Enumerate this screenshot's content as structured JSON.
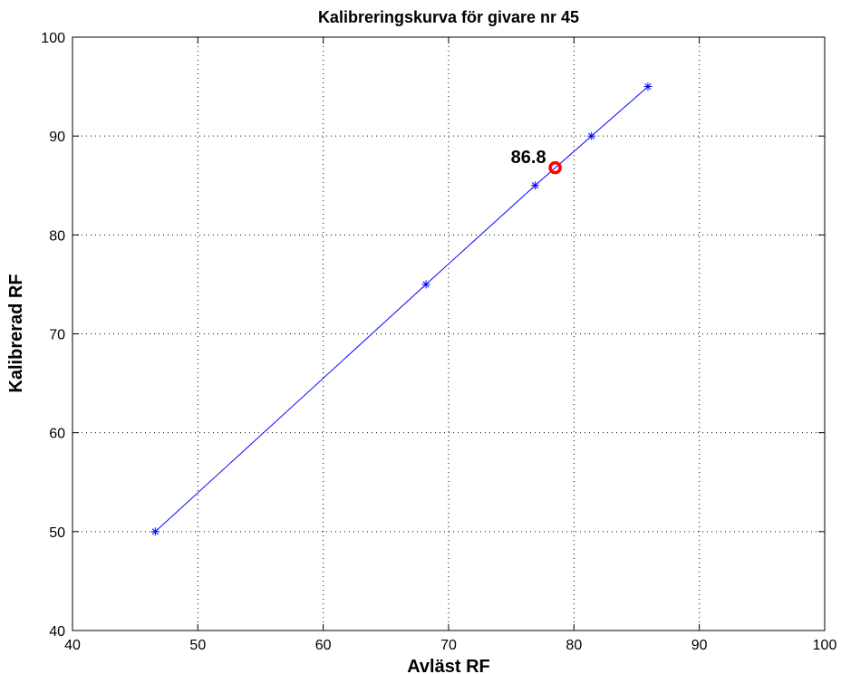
{
  "chart_data": {
    "type": "line",
    "title": "Kalibreringskurva för givare nr 45",
    "xlabel": "Avläst RF",
    "ylabel": "Kalibrerad RF",
    "xlim": [
      40,
      100
    ],
    "ylim": [
      40,
      100
    ],
    "xticks": [
      "40",
      "50",
      "60",
      "70",
      "80",
      "90",
      "100"
    ],
    "yticks": [
      "40",
      "50",
      "60",
      "70",
      "80",
      "90",
      "100"
    ],
    "grid": true,
    "series": [
      {
        "marker": "asterisk",
        "color": "#0000ff",
        "x": [
          46.6,
          68.2,
          76.9,
          81.4,
          85.9
        ],
        "y": [
          50,
          75,
          85,
          90,
          95
        ]
      }
    ],
    "highlight": {
      "x": 78.5,
      "y": 86.8,
      "label": "86.8",
      "color": "#ff0000"
    }
  }
}
